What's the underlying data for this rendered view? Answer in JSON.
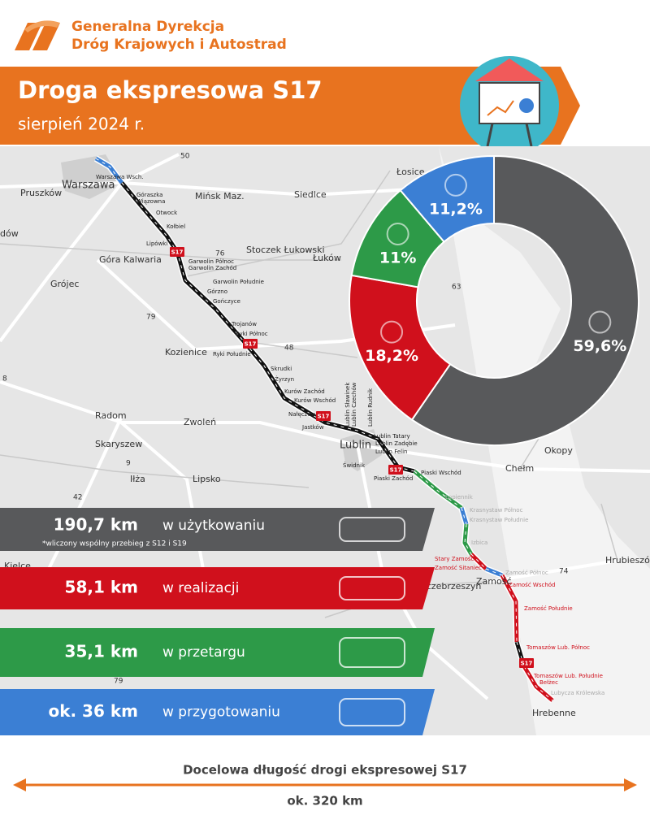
{
  "header": {
    "logo_line1": "Generalna Dyrekcja",
    "logo_line2": "Dróg Krajowych i Autostrad",
    "title": "Droga ekspresowa S17",
    "subtitle": "sierpień 2024 r."
  },
  "chart_data": {
    "type": "pie",
    "donut": true,
    "values": [
      59.6,
      18.2,
      11,
      11.2
    ],
    "value_labels": [
      "59,6%",
      "18,2%",
      "11%",
      "11,2%"
    ],
    "colors": [
      "#58595b",
      "#d0101c",
      "#2d9a48",
      "#3b7fd4"
    ]
  },
  "stats": [
    {
      "amount": "190,7 km",
      "label": "w użytkowaniu",
      "note": "*wliczony wspólny przebieg z S12 i S19"
    },
    {
      "amount": "58,1 km",
      "label": "w realizacji"
    },
    {
      "amount": "35,1 km",
      "label": "w przetargu"
    },
    {
      "amount": "ok. 36 km",
      "label": "w przygotowaniu"
    }
  ],
  "map": {
    "places": [
      "Łosice",
      "Pruszków",
      "Warszawa",
      "Mińsk Maz.",
      "Siedlce",
      "dów",
      "Stoczek Łukowski",
      "Łuków",
      "Góra Kalwaria",
      "Grójec",
      "Kozienice",
      "Radom",
      "Zwoleń",
      "Skaryszew",
      "Iłża",
      "Lipsko",
      "Lublin",
      "Chełm",
      "Okopy",
      "Hrubieszów",
      "Zamość",
      "Szczebrzeszyn",
      "Hrebenne",
      "Kielce"
    ],
    "roads": [
      "50",
      "76",
      "79",
      "48",
      "63",
      "9",
      "42",
      "74",
      "79",
      "8"
    ],
    "nodes": [
      "Warszawa Wsch.",
      "Góraszka",
      "Wiązowna",
      "Otwock",
      "Kołbiel",
      "Lipówki",
      "Garwolin Północ",
      "Garwolin Zachód",
      "Garwolin Południe",
      "Górzno",
      "Gończyce",
      "Trojanów",
      "Ryki Północ",
      "Ryki Południe",
      "Skrudki",
      "Żyrzyn",
      "Kurów Zachód",
      "Kurów Wschód",
      "Nałęczów",
      "Jastków",
      "Lublin Tatary",
      "Lublin Zadębie",
      "Lublin Felin",
      "Świdnik",
      "Piaski Wschód",
      "Piaski Zachód",
      "Łopiennik",
      "Krasnystaw Północ",
      "Krasnystaw Południe",
      "Izbica",
      "Stary Zamość",
      "Zamość Sitaniec",
      "Zamość Północ",
      "Zamość Wschód",
      "Zamość Południe",
      "Tomaszów Lub. Północ",
      "Tomaszów Lub. Południe",
      "Bełżec",
      "Lubycza Królewska",
      "Lublin Sławinek",
      "Lublin Czechów",
      "Lublin Rudnik"
    ],
    "shield": "S17"
  },
  "footer": {
    "caption": "Docelowa długość drogi ekspresowej S17",
    "length": "ok. 320 km"
  }
}
